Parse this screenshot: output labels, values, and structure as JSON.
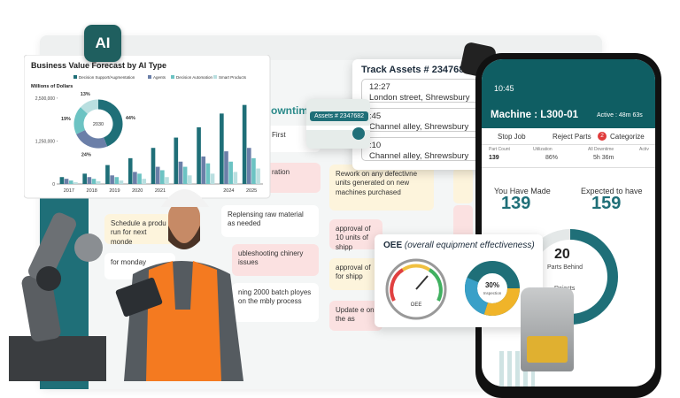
{
  "ai_badge": "AI",
  "chart_data": {
    "type": "bar",
    "title": "Business Value Forecast by AI Type",
    "y_label": "Millions of Dollars",
    "categories": [
      "2017",
      "2018",
      "2019",
      "2020",
      "2021",
      null,
      null,
      "2024",
      "2025"
    ],
    "series": [
      {
        "name": "Decision Support/Augmentation",
        "color": "#1f6f78",
        "values": [
          200000,
          300000,
          550000,
          750000,
          1050000,
          1350000,
          1650000,
          2050000,
          2300000
        ]
      },
      {
        "name": "Agents",
        "color": "#6b7fa8",
        "values": [
          150000,
          200000,
          250000,
          350000,
          500000,
          650000,
          800000,
          950000,
          1050000
        ]
      },
      {
        "name": "Decision Automation",
        "color": "#6cc3c3",
        "values": [
          100000,
          150000,
          200000,
          300000,
          400000,
          500000,
          600000,
          650000,
          750000
        ]
      },
      {
        "name": "Smart Products",
        "color": "#b9dfe0",
        "values": [
          50000,
          80000,
          100000,
          150000,
          200000,
          250000,
          300000,
          350000,
          450000
        ]
      }
    ],
    "ylim": [
      0,
      2600000
    ],
    "yticks": [
      0,
      {
        "value": 1250000,
        "label": "1,250,000"
      },
      {
        "value": 2500000,
        "label": "2,500,000"
      }
    ],
    "donut": {
      "center_label": "2030",
      "values": [
        44,
        24,
        19,
        13
      ],
      "value_labels": [
        "44%",
        "24%",
        "19%",
        "13%"
      ]
    }
  },
  "board": {
    "column_title": "owntime",
    "cards": [
      "First",
      "Replensing raw material as needed",
      "Rework on any defectivne units generated on new machines purchased",
      "Schedule a produ run for next monde",
      "ubleshooting chinery issues",
      "approval of 10 units of shipp",
      "approval of for shipp",
      "ning 2000 batch ployes on the mbly process",
      "Update e on the as",
      "for monday",
      "ration"
    ]
  },
  "track": {
    "title": "Track Assets # 2347682",
    "badge": "Assets # 2347682",
    "locations": [
      {
        "time": "12:27",
        "place": "London street, Shrewsbury"
      },
      {
        "time": ":45",
        "place": "Channel alley, Shrewsbury"
      },
      {
        "time": ":10",
        "place": "Channel alley, Shrewsbury"
      }
    ]
  },
  "phone": {
    "clock": "10:45",
    "machine": "Machine : L300-01",
    "active": "Active : 48m 63s",
    "actions": [
      "Stop Job",
      "Reject Parts",
      "Categorize"
    ],
    "categorize_count": "2",
    "stats": [
      {
        "label": "Part Count",
        "value": "139"
      },
      {
        "label": "Utilization",
        "value": "86%"
      },
      {
        "label": "All Downtime",
        "value": "5h 36m"
      },
      {
        "label": "Activ",
        "value": ""
      }
    ],
    "made_label": "You Have Made",
    "made_value": "139",
    "expected_label": "Expected to have",
    "expected_value": "159",
    "behind_value": "20",
    "behind_label": "Parts Behind",
    "rejects_label": "Rejects"
  },
  "oee": {
    "title": "OEE",
    "subtitle": "(overall equipment effectiveness)",
    "gauge_label": "OEE",
    "donut_value": "30%",
    "donut_label": "Inspection"
  }
}
